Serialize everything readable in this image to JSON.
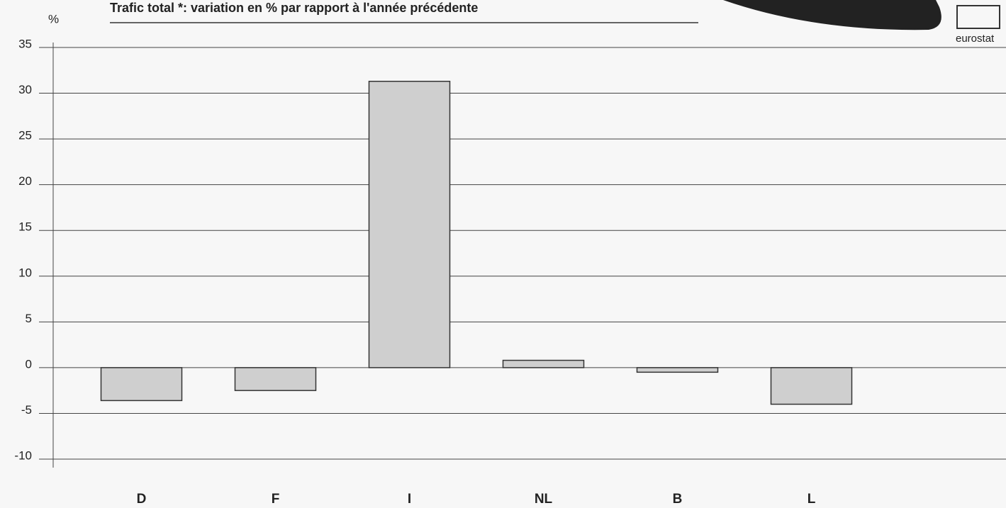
{
  "chart_data": {
    "type": "bar",
    "title": "Trafic total *: variation en % par rapport à l'année précédente",
    "y_label": "%",
    "logo_text": "eurostat",
    "categories": [
      "D",
      "F",
      "I",
      "NL",
      "B",
      "L"
    ],
    "values": [
      -3.6,
      -2.5,
      31.3,
      0.8,
      -0.5,
      -4.0
    ],
    "color": "#cfcfcf",
    "ylim": [
      -10,
      35
    ],
    "yticks": [
      -10,
      -5,
      0,
      5,
      10,
      15,
      20,
      25,
      30,
      35
    ],
    "grid": true
  }
}
